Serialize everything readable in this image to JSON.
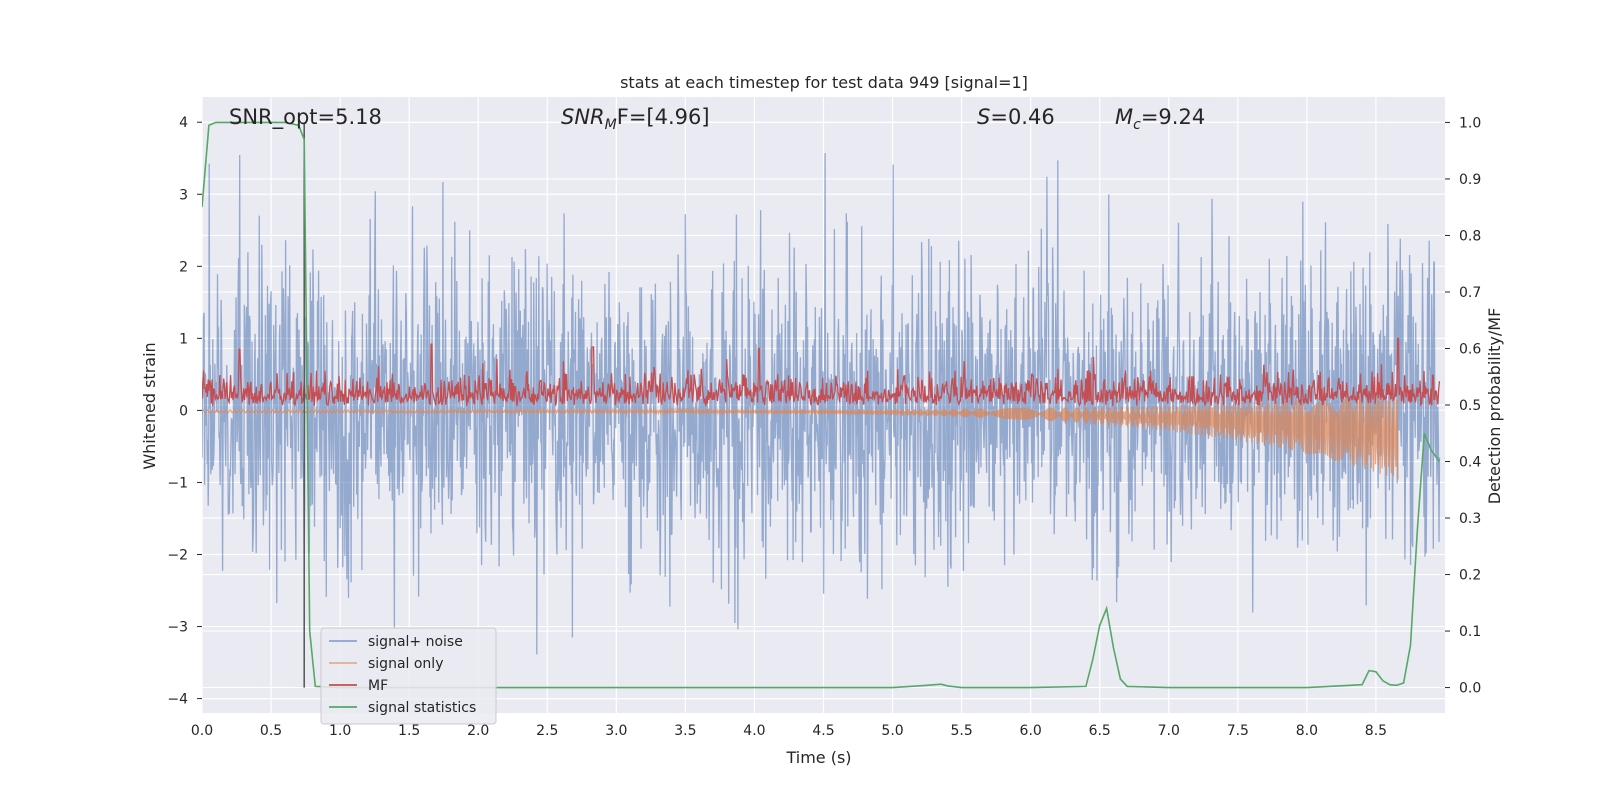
{
  "chart_data": {
    "type": "line",
    "title": "stats at each timestep for test data 949 [signal=1]",
    "xlabel": "Time (s)",
    "ylabel": "Whitened strain",
    "ylabel_right": "Detection probability/MF",
    "xlim": [
      0.0,
      9.0
    ],
    "ylim": [
      -4.2,
      4.35
    ],
    "ylim_right": [
      -0.045,
      1.045
    ],
    "xticks": [
      "0.0",
      "0.5",
      "1.0",
      "1.5",
      "2.0",
      "2.5",
      "3.0",
      "3.5",
      "4.0",
      "4.5",
      "5.0",
      "5.5",
      "6.0",
      "6.5",
      "7.0",
      "7.5",
      "8.0",
      "8.5"
    ],
    "yticks": [
      "4",
      "3",
      "2",
      "1",
      "0",
      "−1",
      "−2",
      "−3",
      "−4"
    ],
    "yticks_right": [
      "1.0",
      "0.9",
      "0.8",
      "0.7",
      "0.6",
      "0.5",
      "0.4",
      "0.3",
      "0.2",
      "0.1",
      "0.0"
    ],
    "grid": true,
    "legend_position": "lower-left",
    "annotations": [
      {
        "id": "snr_opt",
        "text": "SNR_opt=5.18"
      },
      {
        "id": "snr_mf",
        "main": "SNR",
        "sub": "M",
        "rest": "F=[4.96]"
      },
      {
        "id": "s_val",
        "main": "S",
        "rest": "=0.46"
      },
      {
        "id": "mc_val",
        "main": "M",
        "sub": "c",
        "rest": "=9.24"
      }
    ],
    "marker_line_x": 0.74,
    "series": [
      {
        "name": "signal+ noise",
        "color": "#4c72b0",
        "axis": "left",
        "description_band": {
          "noise_sigma": 1.0,
          "x_range": [
            0.0,
            8.96
          ],
          "peak_max": 4.0,
          "peak_min": -3.5
        }
      },
      {
        "name": "signal only",
        "color": "#dd8452",
        "axis": "left",
        "chirp": {
          "x_start": 0.0,
          "x_end": 8.66,
          "amp_start": 0.02,
          "amp_end": 0.6
        }
      },
      {
        "name": "MF",
        "color": "#c44e52",
        "axis": "left",
        "band": {
          "x_range": [
            0.0,
            8.96
          ],
          "floor": 0.0,
          "typical": 0.3,
          "peaks": [
            [
              0.27,
              0.85
            ],
            [
              1.66,
              0.92
            ],
            [
              2.83,
              0.88
            ],
            [
              4.03,
              0.86
            ],
            [
              8.66,
              1.0
            ]
          ]
        }
      },
      {
        "name": "signal statistics",
        "color": "#55a868",
        "axis": "right",
        "x": [
          0.0,
          0.05,
          0.1,
          0.2,
          0.3,
          0.4,
          0.5,
          0.6,
          0.7,
          0.74,
          0.78,
          0.82,
          1.0,
          2.0,
          3.0,
          4.0,
          5.0,
          5.25,
          5.35,
          5.4,
          5.5,
          6.0,
          6.4,
          6.45,
          6.5,
          6.55,
          6.6,
          6.65,
          6.7,
          7.0,
          8.0,
          8.4,
          8.45,
          8.5,
          8.55,
          8.6,
          8.65,
          8.7,
          8.75,
          8.8,
          8.85,
          8.9,
          8.96
        ],
        "y": [
          0.85,
          0.995,
          1.0,
          1.0,
          1.0,
          1.0,
          1.0,
          1.0,
          0.995,
          0.97,
          0.1,
          0.002,
          0.0,
          0.0,
          0.0,
          0.0,
          0.0,
          0.004,
          0.006,
          0.003,
          0.0,
          0.0,
          0.002,
          0.05,
          0.11,
          0.14,
          0.07,
          0.015,
          0.002,
          0.0,
          0.0,
          0.005,
          0.03,
          0.028,
          0.012,
          0.005,
          0.004,
          0.008,
          0.075,
          0.28,
          0.45,
          0.42,
          0.4
        ]
      }
    ]
  }
}
